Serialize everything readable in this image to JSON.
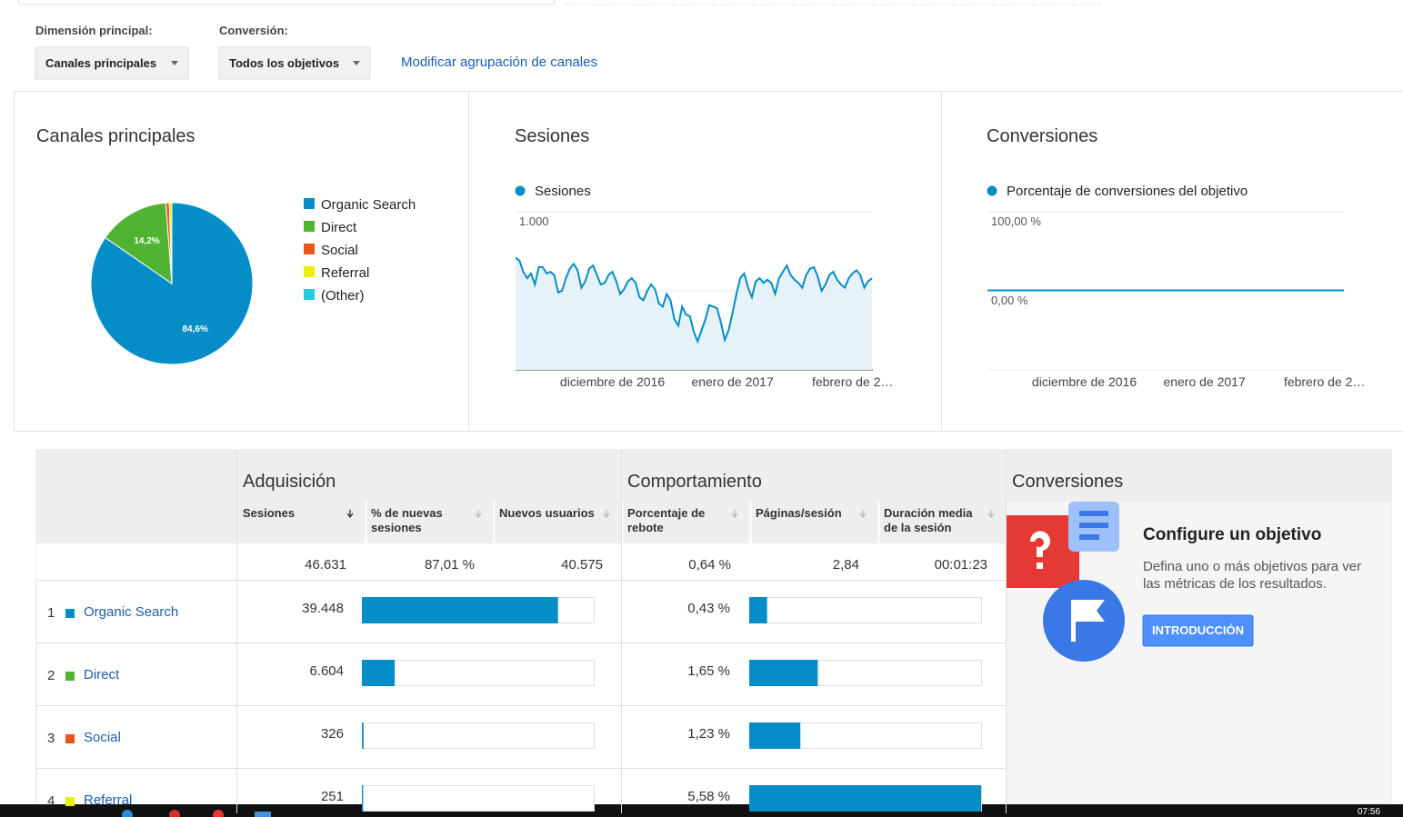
{
  "header": {
    "primary_dimension_label": "Dimensión principal:",
    "primary_dimension_value": "Canales principales",
    "conversion_label": "Conversión:",
    "conversion_value": "Todos los objetivos",
    "link": "Modificar agrupación de canales"
  },
  "chart_data": [
    {
      "type": "pie",
      "title": "Canales principales",
      "categories": [
        "Organic Search",
        "Direct",
        "Social",
        "Referral",
        "(Other)"
      ],
      "values": [
        84.6,
        14.2,
        0.7,
        0.5,
        0
      ],
      "value_labels": [
        "84,6%",
        "14,2%",
        null,
        null,
        null
      ],
      "colors": [
        "#058dc7",
        "#50b432",
        "#ed561b",
        "#edef00",
        "#24cbe5"
      ]
    },
    {
      "type": "line",
      "title": "Sesiones",
      "area": true,
      "grid": true,
      "ylim": [
        0,
        1000
      ],
      "yticks": [
        500,
        {
          "value": 1000,
          "label": "1.000"
        }
      ],
      "categories": [
        null,
        null,
        null,
        null,
        null,
        null,
        null,
        null,
        null,
        null,
        null,
        null,
        null,
        null,
        null,
        null,
        null,
        null,
        null,
        null,
        null,
        null,
        null,
        null,
        null,
        "diciembre de 2016",
        null,
        null,
        null,
        null,
        null,
        null,
        null,
        null,
        null,
        null,
        null,
        null,
        null,
        null,
        null,
        null,
        null,
        null,
        null,
        null,
        null,
        null,
        null,
        null,
        null,
        null,
        null,
        null,
        null,
        null,
        "enero de 2017",
        null,
        null,
        null,
        null,
        null,
        null,
        null,
        null,
        null,
        null,
        null,
        null,
        null,
        null,
        null,
        null,
        null,
        null,
        null,
        null,
        null,
        null,
        null,
        null,
        null,
        null,
        null,
        null,
        null,
        null,
        "febrero de 2…",
        null,
        null,
        null,
        null,
        null
      ],
      "series": [
        {
          "name": "Sesiones",
          "color": "#058dc7",
          "values": [
            710,
            690,
            620,
            580,
            610,
            540,
            650,
            650,
            610,
            620,
            600,
            490,
            500,
            580,
            640,
            670,
            630,
            520,
            560,
            640,
            660,
            600,
            540,
            550,
            600,
            620,
            560,
            480,
            510,
            560,
            580,
            550,
            460,
            440,
            500,
            540,
            510,
            420,
            400,
            480,
            440,
            320,
            280,
            400,
            350,
            340,
            240,
            180,
            250,
            320,
            410,
            400,
            390,
            300,
            190,
            250,
            360,
            480,
            580,
            610,
            520,
            460,
            560,
            580,
            550,
            570,
            550,
            480,
            580,
            620,
            660,
            600,
            570,
            550,
            520,
            600,
            640,
            650,
            590,
            500,
            540,
            600,
            620,
            570,
            540,
            520,
            580,
            610,
            630,
            600,
            520,
            560,
            580
          ]
        }
      ]
    },
    {
      "type": "line",
      "title": "Conversiones",
      "area": false,
      "grid": true,
      "ylim": [
        -100,
        100
      ],
      "yticks": [
        {
          "value": 0,
          "label": "0,00 %"
        },
        {
          "value": 100,
          "label": "100,00 %"
        }
      ],
      "categories": [
        null,
        null,
        null,
        null,
        null,
        null,
        null,
        null,
        null,
        null,
        null,
        null,
        null,
        null,
        null,
        null,
        null,
        null,
        null,
        null,
        null,
        null,
        null,
        null,
        null,
        "diciembre de 2016",
        null,
        null,
        null,
        null,
        null,
        null,
        null,
        null,
        null,
        null,
        null,
        null,
        null,
        null,
        null,
        null,
        null,
        null,
        null,
        null,
        null,
        null,
        null,
        null,
        null,
        null,
        null,
        null,
        null,
        null,
        "enero de 2017",
        null,
        null,
        null,
        null,
        null,
        null,
        null,
        null,
        null,
        null,
        null,
        null,
        null,
        null,
        null,
        null,
        null,
        null,
        null,
        null,
        null,
        null,
        null,
        null,
        null,
        null,
        null,
        null,
        null,
        null,
        "febrero de 2…",
        null,
        null,
        null,
        null,
        null
      ],
      "series": [
        {
          "name": "Porcentaje de conversiones del objetivo",
          "color": "#058dc7",
          "values": [
            0.6,
            0.6,
            0.6,
            0.6,
            0.6,
            0.6,
            0.6,
            0.6,
            0.6,
            0.6,
            0.6,
            0.6,
            0.6,
            0.6,
            0.6,
            0.6,
            0.6,
            0.6,
            0.6,
            0.6,
            0.6,
            0.6,
            0.6,
            0.6,
            0.6,
            0.6,
            0.6,
            0.6,
            0.6,
            0.6,
            0.6,
            0.6,
            0.6,
            0.6,
            0.6,
            0.6,
            0.6,
            0.6,
            0.6,
            0.6,
            0.6,
            0.6,
            0.6,
            0.6,
            0.6,
            0.6,
            0.6,
            0.6,
            0.6,
            0.6,
            0.6,
            0.6,
            0.6,
            0.6,
            0.6,
            0.6,
            0.6,
            0.6,
            0.6,
            0.6,
            0.6,
            0.6,
            0.6,
            0.6,
            0.6,
            0.6,
            0.6,
            0.6,
            0.6,
            0.6,
            0.6,
            0.6,
            0.6,
            0.6,
            0.6,
            0.6,
            0.6,
            0.6,
            0.6,
            0.6,
            0.6,
            0.6,
            0.6,
            0.6,
            0.6,
            0.6,
            0.6,
            0.6,
            0.6,
            0.6,
            0.6,
            0.6,
            0.6
          ]
        }
      ]
    }
  ],
  "table": {
    "groups": [
      "Adquisición",
      "Comportamiento",
      "Conversiones"
    ],
    "columns": [
      "Sesiones",
      "% de nuevas sesiones",
      "Nuevos usuarios",
      "Porcentaje de rebote",
      "Páginas/sesión",
      "Duración media de la sesión"
    ],
    "total_sessions": 46631,
    "total_sessions_label": "46.631",
    "totals": [
      "87,01 %",
      "40.575",
      "0,64 %",
      "2,84",
      "00:01:23"
    ],
    "rows": [
      {
        "rank": 1,
        "name": "Organic Search",
        "color": "#058dc7",
        "sessions": 39448,
        "sessions_label": "39.448",
        "bounce": 0.43,
        "bounce_label": "0,43 %"
      },
      {
        "rank": 2,
        "name": "Direct",
        "color": "#50b432",
        "sessions": 6604,
        "sessions_label": "6.604",
        "bounce": 1.65,
        "bounce_label": "1,65 %"
      },
      {
        "rank": 3,
        "name": "Social",
        "color": "#ed561b",
        "sessions": 326,
        "sessions_label": "326",
        "bounce": 1.23,
        "bounce_label": "1,23 %"
      },
      {
        "rank": 4,
        "name": "Referral",
        "color": "#edef00",
        "sessions": 251,
        "sessions_label": "251",
        "bounce": 5.58,
        "bounce_label": "5,58 %"
      }
    ]
  },
  "goal": {
    "title": "Configure un objetivo",
    "text": "Defina uno o más objetivos para ver las métricas de los resultados.",
    "button": "INTRODUCCIÓN"
  },
  "taskbar": {
    "time": "07:56"
  }
}
